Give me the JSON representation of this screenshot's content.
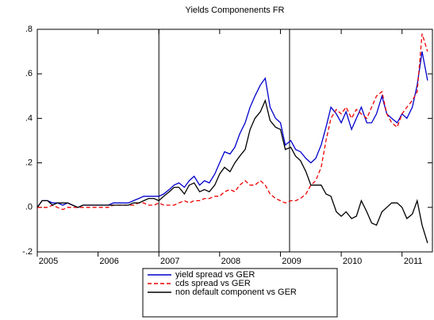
{
  "chart_data": {
    "type": "line",
    "title": "Yields Componenents FR",
    "x": [
      2005.0,
      2005.08,
      2005.17,
      2005.25,
      2005.33,
      2005.42,
      2005.5,
      2005.58,
      2005.67,
      2005.75,
      2005.83,
      2005.92,
      2006.0,
      2006.08,
      2006.17,
      2006.25,
      2006.33,
      2006.42,
      2006.5,
      2006.58,
      2006.67,
      2006.75,
      2006.83,
      2006.92,
      2007.0,
      2007.08,
      2007.17,
      2007.25,
      2007.33,
      2007.42,
      2007.5,
      2007.58,
      2007.67,
      2007.75,
      2007.83,
      2007.92,
      2008.0,
      2008.08,
      2008.17,
      2008.25,
      2008.33,
      2008.42,
      2008.5,
      2008.58,
      2008.67,
      2008.75,
      2008.83,
      2008.92,
      2009.0,
      2009.08,
      2009.17,
      2009.25,
      2009.33,
      2009.42,
      2009.5,
      2009.58,
      2009.67,
      2009.75,
      2009.83,
      2009.92,
      2010.0,
      2010.08,
      2010.17,
      2010.25,
      2010.33,
      2010.42,
      2010.5,
      2010.58,
      2010.67,
      2010.75,
      2010.83,
      2010.92,
      2011.0,
      2011.08,
      2011.17,
      2011.25,
      2011.33,
      2011.42
    ],
    "series": [
      {
        "name": "yield spread vs GER",
        "color": "#0000cc",
        "dash": "none",
        "values": [
          0.0,
          0.03,
          0.03,
          0.02,
          0.02,
          0.01,
          0.02,
          0.01,
          0.0,
          0.01,
          0.01,
          0.01,
          0.01,
          0.01,
          0.01,
          0.02,
          0.02,
          0.02,
          0.02,
          0.03,
          0.04,
          0.05,
          0.05,
          0.05,
          0.05,
          0.06,
          0.08,
          0.1,
          0.11,
          0.09,
          0.12,
          0.14,
          0.1,
          0.12,
          0.11,
          0.15,
          0.2,
          0.25,
          0.24,
          0.27,
          0.33,
          0.38,
          0.45,
          0.5,
          0.55,
          0.58,
          0.45,
          0.4,
          0.38,
          0.28,
          0.3,
          0.26,
          0.25,
          0.22,
          0.2,
          0.22,
          0.28,
          0.36,
          0.45,
          0.42,
          0.38,
          0.43,
          0.35,
          0.4,
          0.45,
          0.38,
          0.38,
          0.42,
          0.5,
          0.42,
          0.4,
          0.38,
          0.42,
          0.4,
          0.45,
          0.55,
          0.7,
          0.57
        ]
      },
      {
        "name": "cds spread vs GER",
        "color": "#ee0000",
        "dash": "5,3",
        "values": [
          0.0,
          0.0,
          0.0,
          0.01,
          0.0,
          -0.01,
          0.0,
          0.0,
          0.0,
          0.0,
          0.0,
          0.0,
          0.0,
          0.0,
          0.0,
          0.01,
          0.01,
          0.01,
          0.01,
          0.01,
          0.02,
          0.02,
          0.01,
          0.01,
          0.02,
          0.01,
          0.01,
          0.01,
          0.02,
          0.03,
          0.02,
          0.03,
          0.03,
          0.04,
          0.04,
          0.05,
          0.05,
          0.07,
          0.08,
          0.07,
          0.1,
          0.12,
          0.1,
          0.1,
          0.12,
          0.1,
          0.06,
          0.04,
          0.03,
          0.02,
          0.03,
          0.03,
          0.04,
          0.06,
          0.1,
          0.12,
          0.18,
          0.3,
          0.4,
          0.44,
          0.42,
          0.45,
          0.4,
          0.44,
          0.42,
          0.4,
          0.45,
          0.5,
          0.52,
          0.42,
          0.38,
          0.36,
          0.42,
          0.45,
          0.48,
          0.52,
          0.78,
          0.7
        ]
      },
      {
        "name": "non default component vs GER",
        "color": "#000000",
        "dash": "none",
        "values": [
          0.0,
          0.03,
          0.03,
          0.01,
          0.02,
          0.02,
          0.02,
          0.01,
          0.0,
          0.01,
          0.01,
          0.01,
          0.01,
          0.01,
          0.01,
          0.01,
          0.01,
          0.01,
          0.01,
          0.02,
          0.02,
          0.03,
          0.04,
          0.04,
          0.03,
          0.05,
          0.07,
          0.09,
          0.09,
          0.06,
          0.1,
          0.11,
          0.07,
          0.08,
          0.07,
          0.1,
          0.15,
          0.18,
          0.16,
          0.2,
          0.23,
          0.26,
          0.35,
          0.4,
          0.43,
          0.48,
          0.39,
          0.36,
          0.35,
          0.26,
          0.27,
          0.23,
          0.21,
          0.16,
          0.1,
          0.1,
          0.1,
          0.06,
          0.05,
          -0.02,
          -0.04,
          -0.02,
          -0.05,
          -0.04,
          0.03,
          -0.02,
          -0.07,
          -0.08,
          -0.02,
          0.0,
          0.02,
          0.02,
          0.0,
          -0.05,
          -0.03,
          0.03,
          -0.08,
          -0.16
        ]
      }
    ],
    "xlim": [
      2005.0,
      2011.5
    ],
    "xticks": [
      2005,
      2006,
      2007,
      2008,
      2009,
      2010,
      2011
    ],
    "ylim": [
      -0.2,
      0.8
    ],
    "yticks": [
      {
        "value": -0.2,
        "label": "-.2"
      },
      {
        "value": 0.0,
        "label": ".0"
      },
      {
        "value": 0.2,
        "label": ".2"
      },
      {
        "value": 0.4,
        "label": ".4"
      },
      {
        "value": 0.6,
        "label": ".6"
      },
      {
        "value": 0.8,
        "label": ".8"
      }
    ],
    "vlines": [
      2007.0,
      2009.15
    ],
    "grid": false
  }
}
